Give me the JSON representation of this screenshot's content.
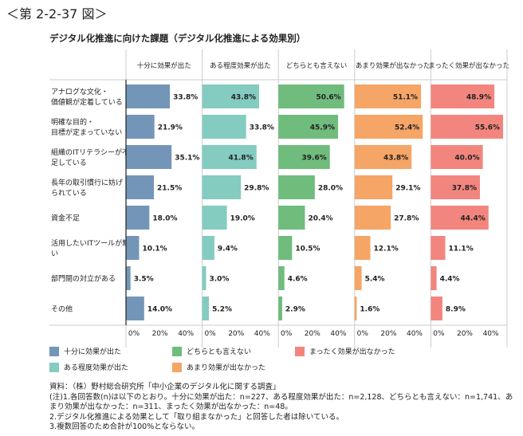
{
  "figure_label": "＜第 2-2-37 図＞",
  "chart_data": {
    "type": "bar",
    "orientation": "horizontal",
    "title": "デジタル化推進に向けた課題（デジタル化推進による効果別）",
    "categories": [
      "アナログな文化・|価値観が定着している",
      "明確な目的・|目標が定まっていない",
      "組織のITリテラシーが不|足している",
      "長年の取引慣行に妨げ|られている",
      "資金不足",
      "活用したいITツールが無|い",
      "部門間の対立がある",
      "その他"
    ],
    "xlim": [
      0,
      60
    ],
    "x_ticks": [
      "0%",
      "20%",
      "40%"
    ],
    "series": [
      {
        "name": "十分に効果が出た",
        "color": "#7396b8",
        "values": [
          33.8,
          21.9,
          35.1,
          21.5,
          18.0,
          10.1,
          3.5,
          14.0
        ]
      },
      {
        "name": "ある程度効果が出た",
        "color": "#84cbc0",
        "values": [
          43.8,
          33.8,
          41.8,
          29.8,
          19.0,
          9.4,
          3.0,
          5.2
        ]
      },
      {
        "name": "どちらとも言えない",
        "color": "#6fbc7c",
        "values": [
          50.6,
          45.9,
          39.6,
          28.0,
          20.4,
          10.5,
          4.6,
          2.9
        ]
      },
      {
        "name": "あまり効果が出なかった",
        "color": "#f5a566",
        "values": [
          51.1,
          52.4,
          43.8,
          29.1,
          27.8,
          12.1,
          5.4,
          1.6
        ]
      },
      {
        "name": "まったく効果が出なかった",
        "color": "#f2867e",
        "values": [
          48.9,
          55.6,
          40.0,
          37.8,
          44.4,
          11.1,
          4.4,
          8.9
        ]
      }
    ],
    "legend_placement": "bottom"
  },
  "notes": [
    "資料：（株）野村総合研究所「中小企業のデジタル化に関する調査」",
    "(注)1.各回答数(n)は以下のとおり。十分に効果が出た：n=227、ある程度効果が出た：n=2,128、どちらとも言えない：n=1,741、あまり効果が出なかった：n=311、まったく効果が出なかった：n=48。",
    "2.デジタル化推進による効果として「取り組まなかった」と回答した者は除いている。",
    "3.複数回答のため合計が100%とならない。"
  ]
}
